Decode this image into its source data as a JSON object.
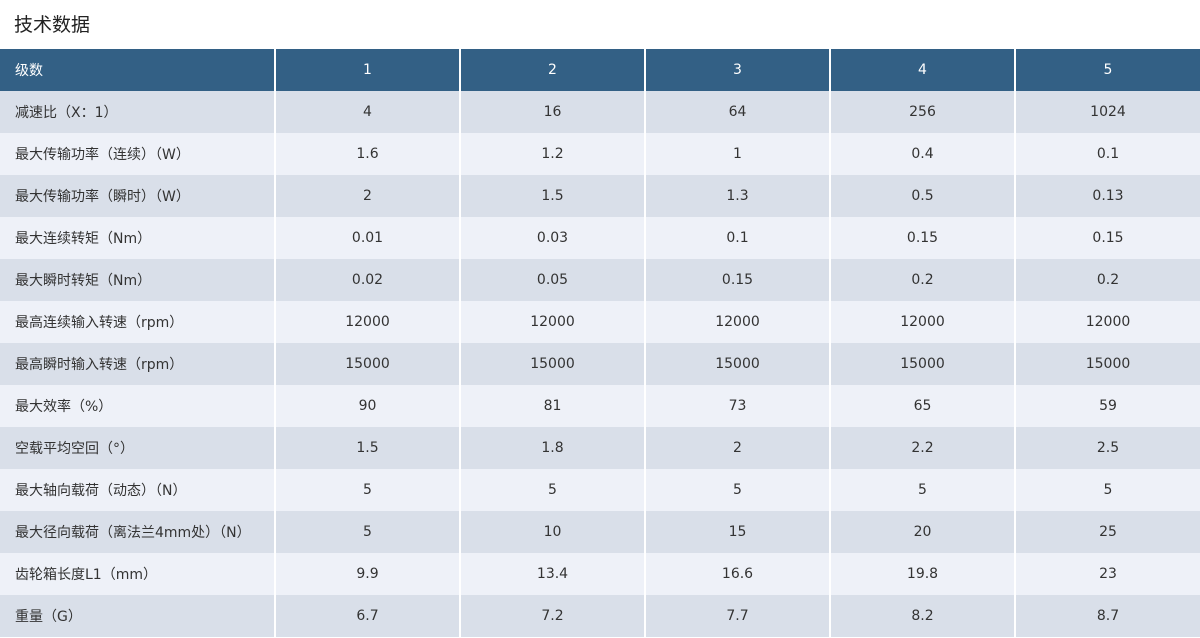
{
  "title": "技术数据",
  "colors": {
    "header": "#336085",
    "row_dark": "#d9dfe9",
    "row_light": "#eef1f8"
  },
  "table": {
    "headers": [
      "级数",
      "1",
      "2",
      "3",
      "4",
      "5"
    ],
    "rows": [
      [
        "减速比（X：1）",
        "4",
        "16",
        "64",
        "256",
        "1024"
      ],
      [
        "最大传输功率（连续）（W）",
        "1.6",
        "1.2",
        "1",
        "0.4",
        "0.1"
      ],
      [
        "最大传输功率（瞬时）（W）",
        "2",
        "1.5",
        "1.3",
        "0.5",
        "0.13"
      ],
      [
        "最大连续转矩（Nm）",
        "0.01",
        "0.03",
        "0.1",
        "0.15",
        "0.15"
      ],
      [
        "最大瞬时转矩（Nm）",
        "0.02",
        "0.05",
        "0.15",
        "0.2",
        "0.2"
      ],
      [
        "最高连续输入转速（rpm）",
        "12000",
        "12000",
        "12000",
        "12000",
        "12000"
      ],
      [
        "最高瞬时输入转速（rpm）",
        "15000",
        "15000",
        "15000",
        "15000",
        "15000"
      ],
      [
        "最大效率（%）",
        "90",
        "81",
        "73",
        "65",
        "59"
      ],
      [
        "空载平均空回（°）",
        "1.5",
        "1.8",
        "2",
        "2.2",
        "2.5"
      ],
      [
        "最大轴向载荷（动态）（N）",
        "5",
        "5",
        "5",
        "5",
        "5"
      ],
      [
        "最大径向载荷（离法兰4mm处）（N）",
        "5",
        "10",
        "15",
        "20",
        "25"
      ],
      [
        "齿轮箱长度L1（mm）",
        "9.9",
        "13.4",
        "16.6",
        "19.8",
        "23"
      ],
      [
        "重量（G）",
        "6.7",
        "7.2",
        "7.7",
        "8.2",
        "8.7"
      ]
    ]
  }
}
